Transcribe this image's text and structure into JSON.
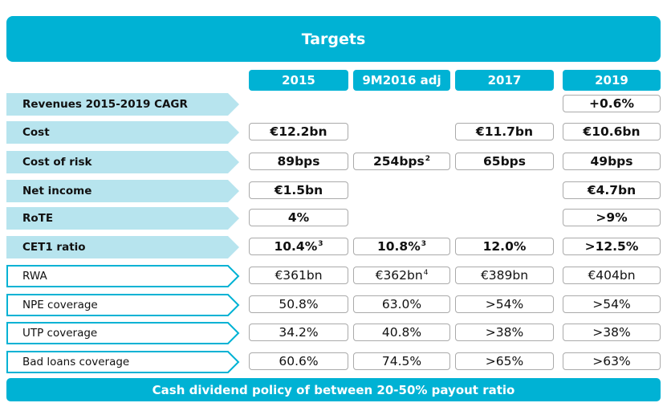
{
  "title": "Targets",
  "columns": [
    "2015",
    "9M2016 adj",
    "2017",
    "2019"
  ],
  "rows": [
    {
      "label": "Revenues 2015-2019 CAGR",
      "bold": true,
      "values": [
        "",
        "",
        "",
        "+0.6%"
      ],
      "sup": [
        "",
        "",
        "",
        ""
      ]
    },
    {
      "label": "Cost",
      "bold": true,
      "values": [
        "€12.2bn",
        "",
        "€11.7bn",
        "€10.6bn"
      ],
      "sup": [
        "",
        "",
        "",
        ""
      ]
    },
    {
      "label": "Cost of risk",
      "bold": true,
      "values": [
        "89bps",
        "254bps",
        "65bps",
        "49bps"
      ],
      "sup": [
        "",
        "2",
        "",
        ""
      ]
    },
    {
      "label": "Net income",
      "bold": true,
      "values": [
        "€1.5bn",
        "",
        "",
        "€4.7bn"
      ],
      "sup": [
        "",
        "",
        "",
        ""
      ]
    },
    {
      "label": "RoTE",
      "bold": true,
      "values": [
        "4%",
        "",
        "",
        ">9%"
      ],
      "sup": [
        "",
        "",
        "",
        ""
      ]
    },
    {
      "label": "CET1 ratio",
      "bold": true,
      "values": [
        "10.4%",
        "10.8%",
        "12.0%",
        ">12.5%"
      ],
      "sup": [
        "3",
        "3",
        "",
        ""
      ]
    },
    {
      "label": "RWA",
      "bold": false,
      "values": [
        "€361bn",
        "€362bn",
        "€389bn",
        "€404bn"
      ],
      "sup": [
        "",
        "4",
        "",
        ""
      ]
    },
    {
      "label": "NPE coverage",
      "bold": false,
      "values": [
        "50.8%",
        "63.0%",
        ">54%",
        ">54%"
      ],
      "sup": [
        "",
        "",
        "",
        ""
      ]
    },
    {
      "label": "UTP coverage",
      "bold": false,
      "values": [
        "34.2%",
        "40.8%",
        ">38%",
        ">38%"
      ],
      "sup": [
        "",
        "",
        "",
        ""
      ]
    },
    {
      "label": "Bad loans coverage",
      "bold": false,
      "values": [
        "60.6%",
        "74.5%",
        ">65%",
        ">63%"
      ],
      "sup": [
        "",
        "",
        "",
        ""
      ]
    }
  ],
  "footer": "Cash dividend policy of between 20-50% payout ratio",
  "colors": {
    "accent": "#00b2d4",
    "label_fill": "#b7e4ee"
  }
}
